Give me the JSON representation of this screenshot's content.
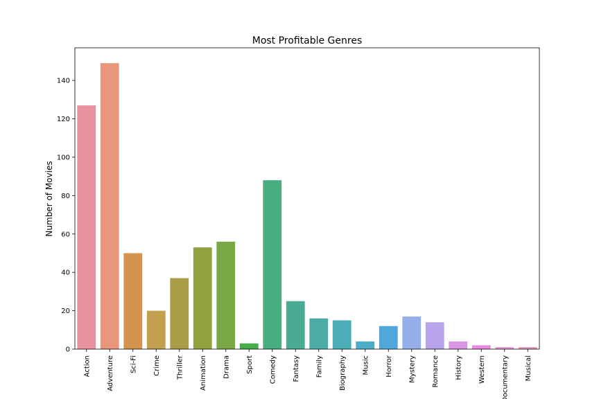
{
  "chart_data": {
    "type": "bar",
    "title": "Most Profitable Genres",
    "xlabel": "",
    "ylabel": "Number of Movies",
    "ylim": [
      0,
      157
    ],
    "yticks": [
      0,
      20,
      40,
      60,
      80,
      100,
      120,
      140
    ],
    "grid": false,
    "categories": [
      "Action",
      "Adventure",
      "Sci-Fi",
      "Crime",
      "Thriller",
      "Animation",
      "Drama",
      "Sport",
      "Comedy",
      "Fantasy",
      "Family",
      "Biography",
      "Music",
      "Horror",
      "Mystery",
      "Romance",
      "History",
      "Western",
      "Documentary",
      "Musical"
    ],
    "values": [
      127,
      149,
      50,
      20,
      37,
      53,
      56,
      3,
      88,
      25,
      16,
      15,
      4,
      12,
      17,
      14,
      4,
      2,
      1,
      1
    ],
    "colors": [
      "#e8929f",
      "#e8967c",
      "#d49450",
      "#c29f4f",
      "#aa9d47",
      "#8fa23e",
      "#7aa846",
      "#46ad4a",
      "#49ae7f",
      "#4aab94",
      "#4aaba7",
      "#4badb6",
      "#4baec9",
      "#51a6dc",
      "#94aee9",
      "#b7a4ea",
      "#d996e7",
      "#e88ae4",
      "#e890d0",
      "#e593bb"
    ]
  }
}
